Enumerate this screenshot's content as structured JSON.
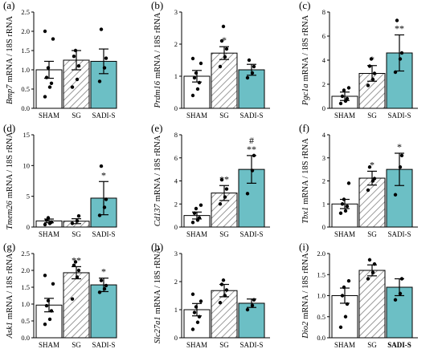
{
  "colors": {
    "bar_sham": "#ffffff",
    "bar_sg_hatch": "#9a9a9a",
    "bar_sadi": "#6cbfc5",
    "stroke": "#000000"
  },
  "chart_data": [
    {
      "panel": "(a)",
      "type": "bar",
      "gene": "Bmp7",
      "ylabel_rest": "mRNA / 18S rRNA",
      "categories": [
        "SHAM",
        "SG",
        "SADI-S"
      ],
      "values": [
        1.0,
        1.25,
        1.22
      ],
      "errors": [
        0.22,
        0.25,
        0.32
      ],
      "ylim": [
        0,
        2.5
      ],
      "yticks": [
        "0.0",
        "0.5",
        "1.0",
        "1.5",
        "2.0",
        "2.5"
      ],
      "sig": [
        "",
        "",
        ""
      ],
      "sig2": [
        "",
        "",
        ""
      ],
      "points": [
        [
          0.3,
          0.55,
          0.65,
          0.8,
          1.05,
          1.8,
          2.0
        ],
        [
          0.55,
          0.75,
          1.1,
          1.35,
          1.5
        ],
        [
          0.7,
          1.05,
          1.3,
          2.05
        ]
      ],
      "bold_last_category": false
    },
    {
      "panel": "(b)",
      "type": "bar",
      "gene": "Prdm16",
      "ylabel_rest": "mRNA / 18S rRNA",
      "categories": [
        "SHAM",
        "SG",
        "SADI-S"
      ],
      "values": [
        1.0,
        1.72,
        1.2
      ],
      "errors": [
        0.18,
        0.2,
        0.17
      ],
      "ylim": [
        0,
        3
      ],
      "yticks": [
        "0",
        "1",
        "2",
        "3"
      ],
      "sig": [
        "",
        "*",
        ""
      ],
      "sig2": [
        "",
        "",
        ""
      ],
      "points": [
        [
          0.4,
          0.6,
          0.8,
          0.95,
          1.1,
          1.4,
          1.55
        ],
        [
          1.3,
          1.6,
          1.85,
          2.1,
          2.55
        ],
        [
          0.95,
          1.1,
          1.3,
          1.5
        ]
      ],
      "bold_last_category": false
    },
    {
      "panel": "(c)",
      "type": "bar",
      "gene": "Pgc1a",
      "ylabel_rest": "mRNA / 18S rRNA",
      "categories": [
        "SHAM",
        "SG",
        "SADI-S"
      ],
      "values": [
        1.0,
        2.9,
        4.6
      ],
      "errors": [
        0.35,
        0.65,
        1.5
      ],
      "ylim": [
        0,
        8
      ],
      "yticks": [
        "0",
        "2",
        "4",
        "6",
        "8"
      ],
      "sig": [
        "",
        "*",
        "**"
      ],
      "sig2": [
        "",
        "",
        ""
      ],
      "points": [
        [
          0.4,
          0.6,
          0.8,
          1.0,
          1.5,
          1.7
        ],
        [
          1.9,
          2.4,
          2.9,
          3.5,
          4.1
        ],
        [
          3.0,
          4.1,
          4.6,
          7.3
        ]
      ],
      "bold_last_category": false
    },
    {
      "panel": "(d)",
      "type": "bar",
      "gene": "Tmem26",
      "ylabel_rest": "mRNA / 18S rRNA",
      "categories": [
        "SHAM",
        "SG",
        "SADI-S"
      ],
      "values": [
        1.0,
        0.95,
        4.7
      ],
      "errors": [
        0.3,
        0.4,
        2.7
      ],
      "ylim": [
        0,
        15
      ],
      "yticks": [
        "0",
        "5",
        "10",
        "15"
      ],
      "sig": [
        "",
        "",
        "*"
      ],
      "sig2": [
        "",
        "",
        ""
      ],
      "points": [
        [
          0.4,
          0.6,
          0.8,
          1.1,
          1.5
        ],
        [
          0.6,
          1.0,
          1.8
        ],
        [
          1.9,
          3.2,
          4.5,
          9.9
        ]
      ],
      "bold_last_category": false
    },
    {
      "panel": "(e)",
      "type": "bar",
      "gene": "Cd137",
      "ylabel_rest": "mRNA / 18S rRNA",
      "categories": [
        "SHAM",
        "SG",
        "SADI-S"
      ],
      "values": [
        1.0,
        2.95,
        5.0
      ],
      "errors": [
        0.3,
        0.65,
        1.2
      ],
      "ylim": [
        0,
        8
      ],
      "yticks": [
        "0",
        "2",
        "4",
        "6",
        "8"
      ],
      "sig": [
        "",
        "**",
        "**"
      ],
      "sig2": [
        "",
        "",
        "#"
      ],
      "points": [
        [
          0.4,
          0.6,
          0.8,
          1.2,
          1.6,
          1.9
        ],
        [
          2.0,
          2.6,
          3.3,
          4.1
        ],
        [
          2.9,
          4.9,
          6.2
        ]
      ],
      "bold_last_category": false
    },
    {
      "panel": "(f)",
      "type": "bar",
      "gene": "Tbx1",
      "ylabel_rest": "mRNA / 18S rRNA",
      "categories": [
        "SHAM",
        "SG",
        "SADI-S"
      ],
      "values": [
        1.0,
        2.12,
        2.5
      ],
      "errors": [
        0.2,
        0.3,
        0.7
      ],
      "ylim": [
        0,
        4
      ],
      "yticks": [
        "0",
        "1",
        "2",
        "3",
        "4"
      ],
      "sig": [
        "",
        "*",
        "*"
      ],
      "sig2": [
        "",
        "",
        ""
      ],
      "points": [
        [
          0.6,
          0.7,
          0.9,
          1.0,
          1.2,
          1.9
        ],
        [
          1.6,
          2.0,
          2.1,
          2.6
        ],
        [
          1.4,
          2.6,
          3.1
        ]
      ],
      "bold_last_category": false
    },
    {
      "panel": "(g)",
      "type": "bar",
      "gene": "Ask1",
      "ylabel_rest": "mRNA / 18S rRNA",
      "categories": [
        "SHAM",
        "SG",
        "SADI-S"
      ],
      "values": [
        0.97,
        1.93,
        1.57
      ],
      "errors": [
        0.2,
        0.18,
        0.2
      ],
      "ylim": [
        0,
        2.5
      ],
      "yticks": [
        "0.0",
        "0.5",
        "1.0",
        "1.5",
        "2.0",
        "2.5"
      ],
      "sig": [
        "",
        "**",
        "*"
      ],
      "sig2": [
        "",
        "",
        ""
      ],
      "points": [
        [
          0.4,
          0.55,
          0.8,
          0.95,
          1.1,
          1.6,
          1.85
        ],
        [
          1.15,
          1.8,
          2.0,
          2.15,
          2.25
        ],
        [
          1.35,
          1.45,
          1.55,
          1.7
        ]
      ],
      "bold_last_category": false
    },
    {
      "panel": "(h)",
      "type": "bar",
      "gene": "Slc27a1",
      "ylabel_rest": "mRNA / 18S rRNA",
      "categories": [
        "SHAM",
        "SG",
        "SADI-S"
      ],
      "values": [
        1.0,
        1.68,
        1.23
      ],
      "errors": [
        0.22,
        0.22,
        0.15
      ],
      "ylim": [
        0,
        3
      ],
      "yticks": [
        "0",
        "1",
        "2",
        "3"
      ],
      "sig": [
        "",
        "",
        ""
      ],
      "sig2": [
        "",
        "",
        ""
      ],
      "points": [
        [
          0.3,
          0.55,
          0.75,
          0.9,
          1.1,
          1.3,
          1.55
        ],
        [
          1.25,
          1.5,
          1.7,
          1.9,
          2.05
        ],
        [
          1.0,
          1.15,
          1.35
        ]
      ],
      "bold_last_category": false
    },
    {
      "panel": "(i)",
      "type": "bar",
      "gene": "Dio2",
      "ylabel_rest": "mRNA / 18S rRNA",
      "categories": [
        "SHAM",
        "SG",
        "SADI-S"
      ],
      "values": [
        1.0,
        1.6,
        1.2
      ],
      "errors": [
        0.18,
        0.13,
        0.2
      ],
      "ylim": [
        0,
        2.0
      ],
      "yticks": [
        "0.0",
        "0.5",
        "1.0",
        "1.5",
        "2.0"
      ],
      "sig": [
        "",
        "",
        ""
      ],
      "sig2": [
        "",
        "",
        ""
      ],
      "points": [
        [
          0.25,
          0.5,
          0.8,
          1.0,
          1.2,
          1.35
        ],
        [
          1.4,
          1.55,
          1.75,
          1.85
        ],
        [
          0.9,
          1.05,
          1.4
        ]
      ],
      "bold_last_category": true
    }
  ]
}
